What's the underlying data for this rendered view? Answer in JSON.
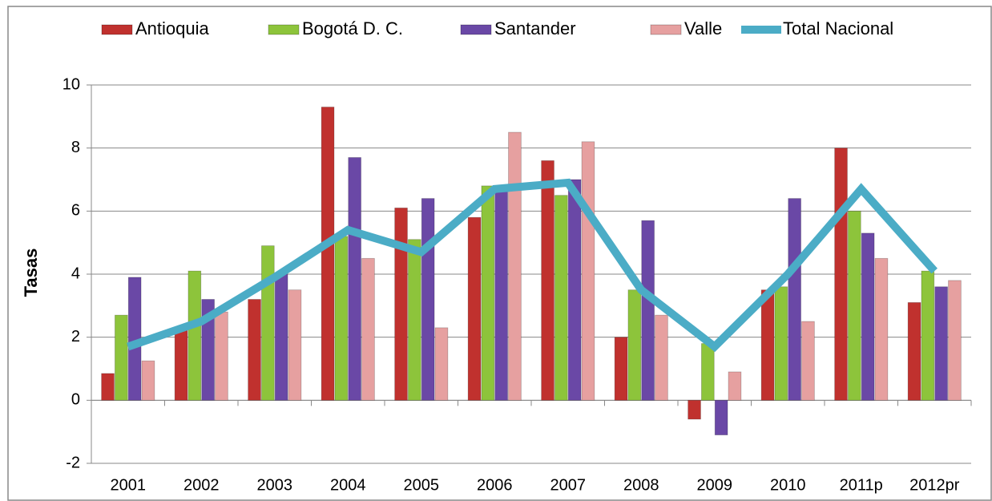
{
  "chart_data": {
    "type": "bar-line",
    "ylabel": "Tasas",
    "categories": [
      "2001",
      "2002",
      "2003",
      "2004",
      "2005",
      "2006",
      "2007",
      "2008",
      "2009",
      "2010",
      "2011p",
      "2012pr"
    ],
    "series": [
      {
        "name": "Antioquia",
        "type": "bar",
        "color": "#c0312e",
        "values": [
          0.85,
          2.3,
          3.2,
          9.3,
          6.1,
          5.8,
          7.6,
          2.0,
          -0.6,
          3.5,
          8.0,
          3.1
        ]
      },
      {
        "name": "Bogotá D. C.",
        "type": "bar",
        "color": "#8dc43b",
        "values": [
          2.7,
          4.1,
          4.9,
          5.2,
          5.1,
          6.8,
          6.5,
          3.5,
          1.8,
          3.6,
          6.0,
          4.1
        ]
      },
      {
        "name": "Santander",
        "type": "bar",
        "color": "#6a48a6",
        "values": [
          3.9,
          3.2,
          4.0,
          7.7,
          6.4,
          6.7,
          7.0,
          5.7,
          -1.1,
          6.4,
          5.3,
          3.6
        ]
      },
      {
        "name": "Valle",
        "type": "bar",
        "color": "#e6a0a0",
        "values": [
          1.25,
          2.8,
          3.5,
          4.5,
          2.3,
          8.5,
          8.2,
          2.7,
          0.9,
          2.5,
          4.5,
          3.8
        ]
      },
      {
        "name": "Total Nacional",
        "type": "line",
        "color": "#4bacc6",
        "values": [
          1.7,
          2.5,
          3.9,
          5.4,
          4.7,
          6.7,
          6.9,
          3.5,
          1.7,
          4.0,
          6.7,
          4.1
        ]
      }
    ],
    "ylim": [
      -2,
      10
    ],
    "yticks": [
      -2,
      0,
      2,
      4,
      6,
      8,
      10
    ],
    "grid": true,
    "legend": "top"
  }
}
